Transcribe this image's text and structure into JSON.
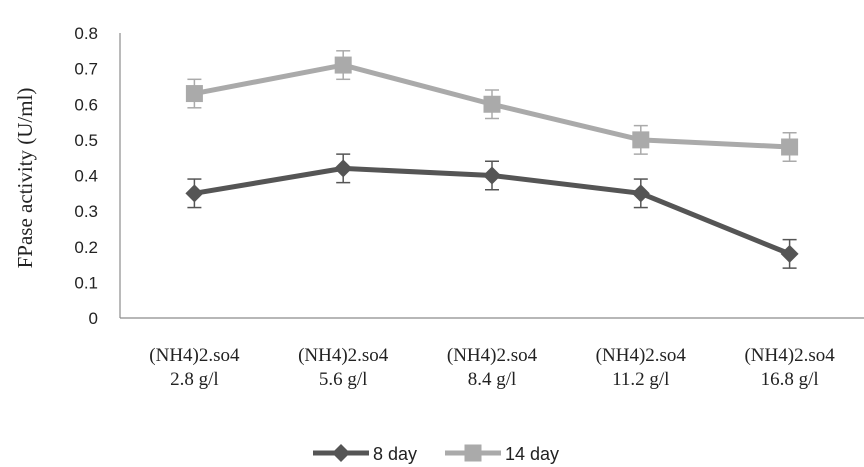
{
  "chart_data": {
    "type": "line",
    "title": "",
    "xlabel": "",
    "ylabel": "FPase activity (U/ml)",
    "ylim": [
      0,
      0.8
    ],
    "yticks": [
      "0",
      "0.1",
      "0.2",
      "0.3",
      "0.4",
      "0.5",
      "0.6",
      "0.7",
      "0.8"
    ],
    "categories": [
      [
        "(NH4)2.so4",
        "2.8 g/l"
      ],
      [
        "(NH4)2.so4",
        "5.6 g/l"
      ],
      [
        "(NH4)2.so4",
        "8.4 g/l"
      ],
      [
        "(NH4)2.so4",
        "11.2 g/l"
      ],
      [
        "(NH4)2.so4",
        "16.8 g/l"
      ]
    ],
    "series": [
      {
        "name": "8 day",
        "color": "#555555",
        "marker": "diamond",
        "values": [
          0.35,
          0.42,
          0.4,
          0.35,
          0.18
        ],
        "errors": [
          0.04,
          0.04,
          0.04,
          0.04,
          0.04
        ]
      },
      {
        "name": "14 day",
        "color": "#aaaaaa",
        "marker": "square",
        "values": [
          0.63,
          0.71,
          0.6,
          0.5,
          0.48
        ],
        "errors": [
          0.04,
          0.04,
          0.04,
          0.04,
          0.04
        ]
      }
    ],
    "grid": false,
    "legend": "bottom-center"
  }
}
